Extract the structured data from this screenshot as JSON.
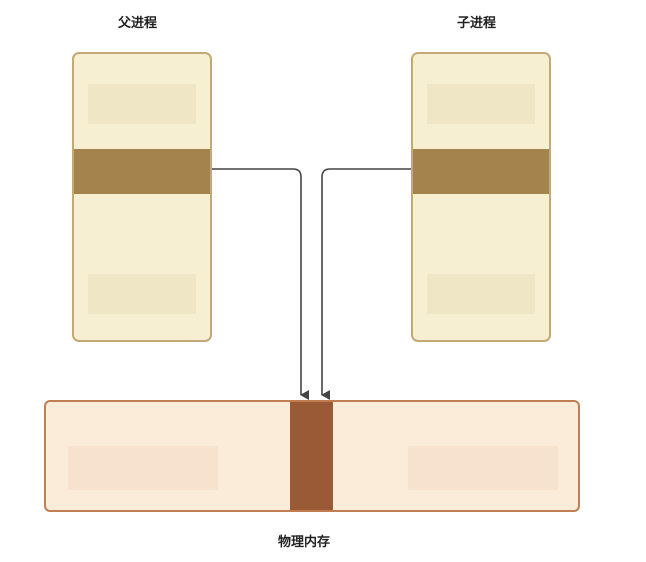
{
  "labels": {
    "parent": "父进程",
    "child": "子进程",
    "memory": "物理内存"
  },
  "colors": {
    "process_fill": "#f6efd2",
    "process_border": "#c4a978",
    "shared_band": "#a5834c",
    "memory_fill": "#fbebd9",
    "memory_border": "#c07e52",
    "memory_shared_page": "#9a5a35",
    "arrow": "#444444"
  }
}
